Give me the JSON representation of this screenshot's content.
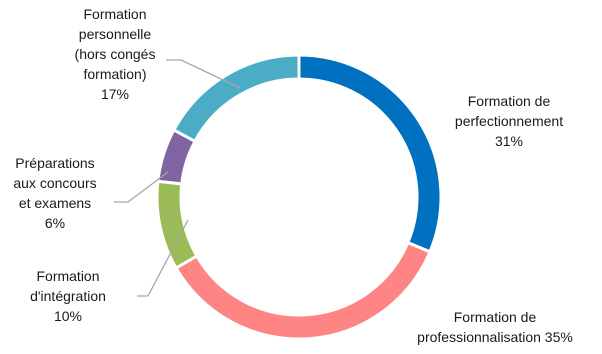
{
  "chart_data": {
    "type": "pie",
    "subtype": "donut",
    "title": "",
    "slices": [
      {
        "label": [
          "Formation de",
          "perfectionnement"
        ],
        "pct_label": "31%",
        "value": 31,
        "color": "#0070C0"
      },
      {
        "label": [
          "Formation de",
          "professionnalisation 35%"
        ],
        "pct_label": "",
        "value": 35,
        "color": "#FF8585"
      },
      {
        "label": [
          "Formation",
          "d'intégration"
        ],
        "pct_label": "10%",
        "value": 10,
        "color": "#9BBB59"
      },
      {
        "label": [
          "Préparations",
          "aux concours",
          "et examens"
        ],
        "pct_label": "6%",
        "value": 6,
        "color": "#8064A2"
      },
      {
        "label": [
          "Formation",
          "personnelle",
          "(hors congés",
          "formation)"
        ],
        "pct_label": "17%",
        "value": 17,
        "color": "#4BACC6"
      }
    ]
  }
}
